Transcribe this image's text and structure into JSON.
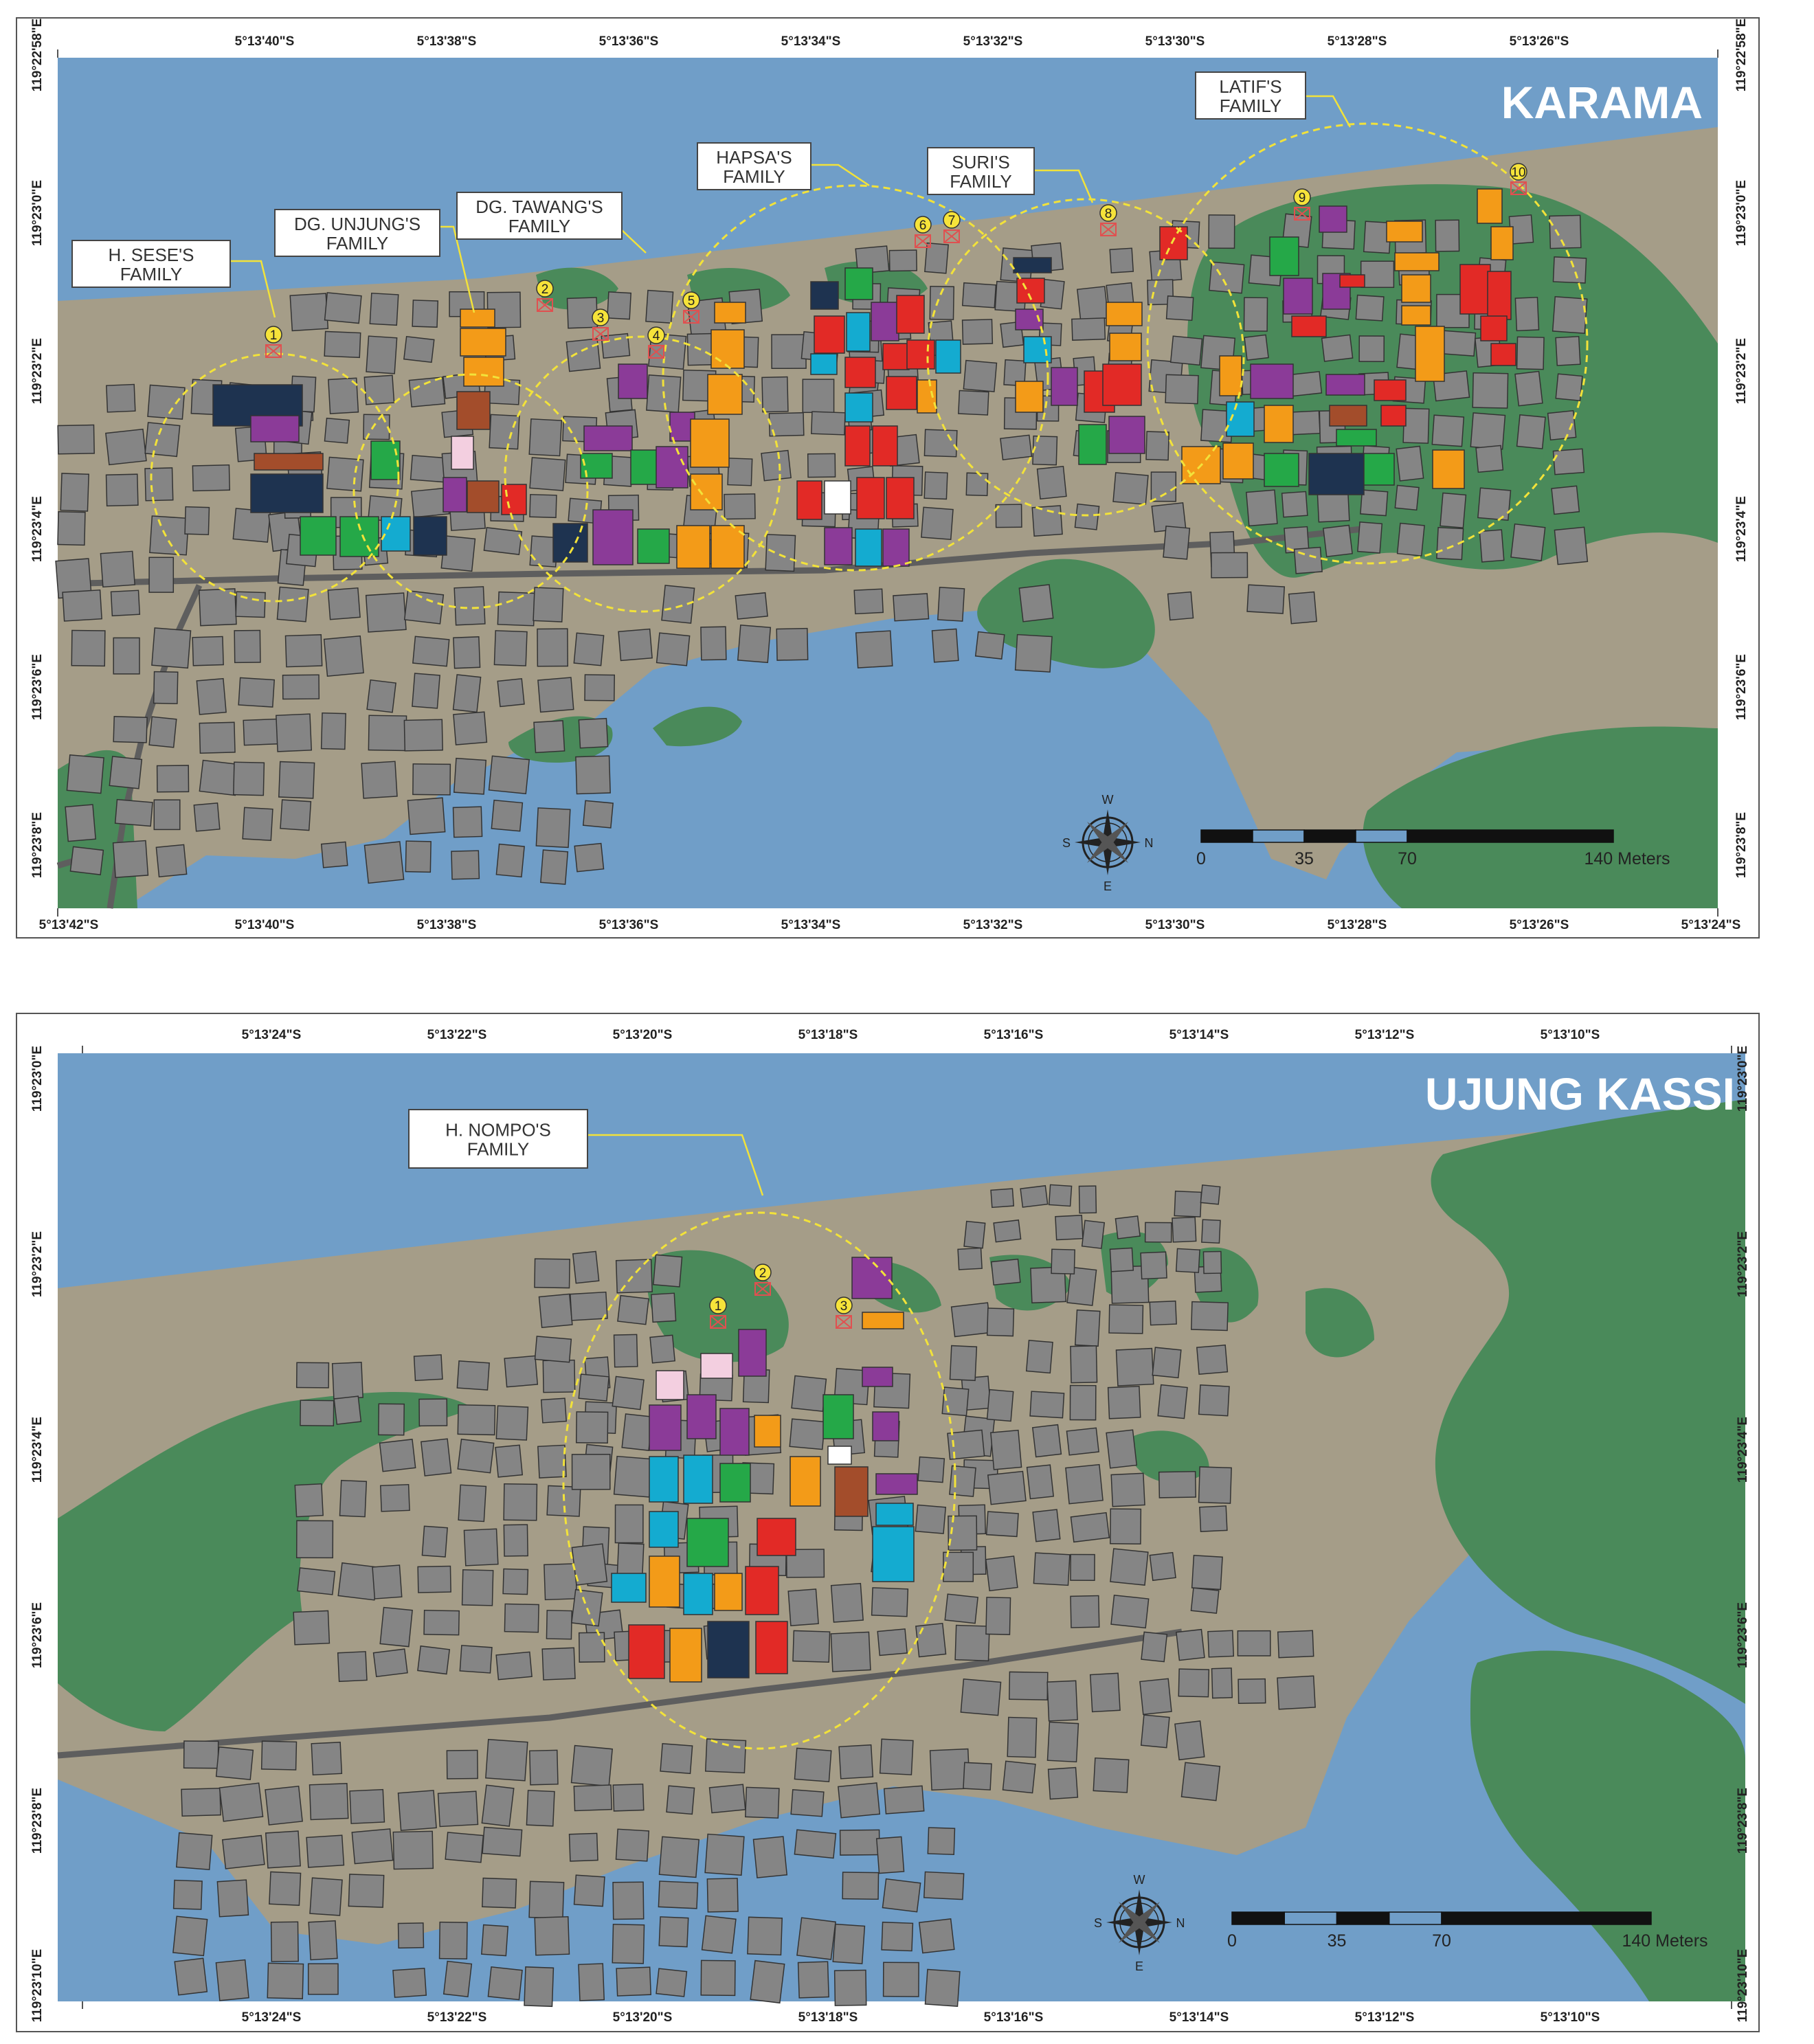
{
  "colors": {
    "sea": "#709ec8",
    "land": "#a59d88",
    "mangrove": "#4a8a5a",
    "building": "#858585",
    "road": "#5e5e5e",
    "circle": "#f2e23a",
    "marker": "#e05050",
    "red": "#e22a26",
    "orange": "#f39b18",
    "purple": "#8b3b98",
    "green": "#25a848",
    "cyan": "#14abd0",
    "navy": "#1e3350",
    "brown": "#a34d2b",
    "pink": "#f3cfe0",
    "white": "#ffffff"
  },
  "karama": {
    "title": "KARAMA",
    "top_ticks": [
      "5°13'40\"S",
      "5°13'38\"S",
      "5°13'36\"S",
      "5°13'34\"S",
      "5°13'32\"S",
      "5°13'30\"S",
      "5°13'28\"S",
      "5°13'26\"S"
    ],
    "bottom_ticks": [
      "5°13'42\"S",
      "5°13'40\"S",
      "5°13'38\"S",
      "5°13'36\"S",
      "5°13'34\"S",
      "5°13'32\"S",
      "5°13'30\"S",
      "5°13'28\"S",
      "5°13'26\"S",
      "5°13'24\"S"
    ],
    "side_ticks": [
      "119°22'58\"E",
      "119°23'0\"E",
      "119°23'2\"E",
      "119°23'4\"E",
      "119°23'6\"E",
      "119°23'8\"E"
    ],
    "families": [
      {
        "line1": "H. SESE'S",
        "line2": "FAMILY"
      },
      {
        "line1": "DG. UNJUNG'S",
        "line2": "FAMILY"
      },
      {
        "line1": "DG. TAWANG'S",
        "line2": "FAMILY"
      },
      {
        "line1": "HAPSA'S",
        "line2": "FAMILY"
      },
      {
        "line1": "SURI'S",
        "line2": "FAMILY"
      },
      {
        "line1": "LATIF'S",
        "line2": "FAMILY"
      }
    ],
    "markers": [
      "1",
      "2",
      "3",
      "4",
      "5",
      "6",
      "7",
      "8",
      "9",
      "10"
    ],
    "scale": {
      "t0": "0",
      "t1": "35",
      "t2": "70",
      "t3": "140 Meters"
    }
  },
  "ujung": {
    "title": "UJUNG KASSI",
    "top_ticks": [
      "5°13'24\"S",
      "5°13'22\"S",
      "5°13'20\"S",
      "5°13'18\"S",
      "5°13'16\"S",
      "5°13'14\"S",
      "5°13'12\"S",
      "5°13'10\"S"
    ],
    "bottom_ticks": [
      "5°13'24\"S",
      "5°13'22\"S",
      "5°13'20\"S",
      "5°13'18\"S",
      "5°13'16\"S",
      "5°13'14\"S",
      "5°13'12\"S",
      "5°13'10\"S"
    ],
    "side_ticks": [
      "119°23'0\"E",
      "119°23'2\"E",
      "119°23'4\"E",
      "119°23'6\"E",
      "119°23'8\"E",
      "119°23'10\"E"
    ],
    "families": [
      {
        "line1": "H. NOMPO'S",
        "line2": "FAMILY"
      }
    ],
    "markers": [
      "1",
      "2",
      "3"
    ],
    "scale": {
      "t0": "0",
      "t1": "35",
      "t2": "70",
      "t3": "140 Meters"
    }
  },
  "compass": {
    "n": "N",
    "s": "S",
    "e": "E",
    "w": "W"
  }
}
